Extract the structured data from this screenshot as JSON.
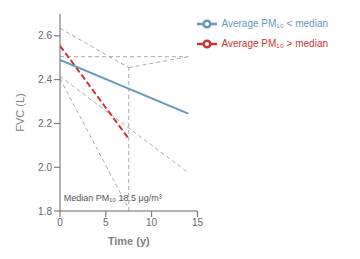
{
  "chart_data": {
    "type": "line",
    "xlabel": "Time (y)",
    "ylabel": "FVC (L)",
    "xlim": [
      0,
      15
    ],
    "ylim": [
      1.8,
      2.7
    ],
    "xticks": [
      0,
      5,
      10,
      15
    ],
    "yticks": [
      1.8,
      {
        "value": 2.0,
        "label": "2.0"
      },
      2.2,
      2.4,
      2.6
    ],
    "grid": false,
    "legend": "upper right",
    "series": [
      {
        "color": "#aaaaaa",
        "line_style": "dashed",
        "x": [
          0,
          7.5
        ],
        "values": [
          2.635,
          2.455
        ]
      },
      {
        "color": "#aaaaaa",
        "line_style": "dashed",
        "x": [
          0,
          7.5
        ],
        "values": [
          2.405,
          1.81
        ]
      },
      {
        "color": "#aaaaaa",
        "line_style": "dashed",
        "x": [
          0,
          14
        ],
        "values": [
          2.505,
          2.505
        ]
      },
      {
        "color": "#aaaaaa",
        "line_style": "dashed",
        "x": [
          0,
          14
        ],
        "values": [
          2.415,
          1.975
        ]
      },
      {
        "color": "#aaaaaa",
        "line_style": "dashed",
        "x": [
          7.5,
          7.5
        ],
        "values": [
          1.8,
          2.455
        ]
      },
      {
        "color": "#aaaaaa",
        "line_style": "dashed",
        "x": [
          7.5,
          14
        ],
        "values": [
          2.455,
          2.505
        ]
      },
      {
        "name": "Average PM₁₀ > median",
        "color": "#cc3333",
        "line_style": "dashed",
        "x": [
          0,
          7.5
        ],
        "values": [
          2.555,
          2.13
        ]
      },
      {
        "name": "Average PM₁₀ < median",
        "color": "#6699bb",
        "line_style": "solid",
        "x": [
          0,
          14
        ],
        "values": [
          2.49,
          2.245
        ]
      }
    ],
    "annotations": [
      {
        "text": "Median PM₁₀ 18.5 μg/m³",
        "x": 0.4,
        "y": 1.845
      }
    ]
  }
}
